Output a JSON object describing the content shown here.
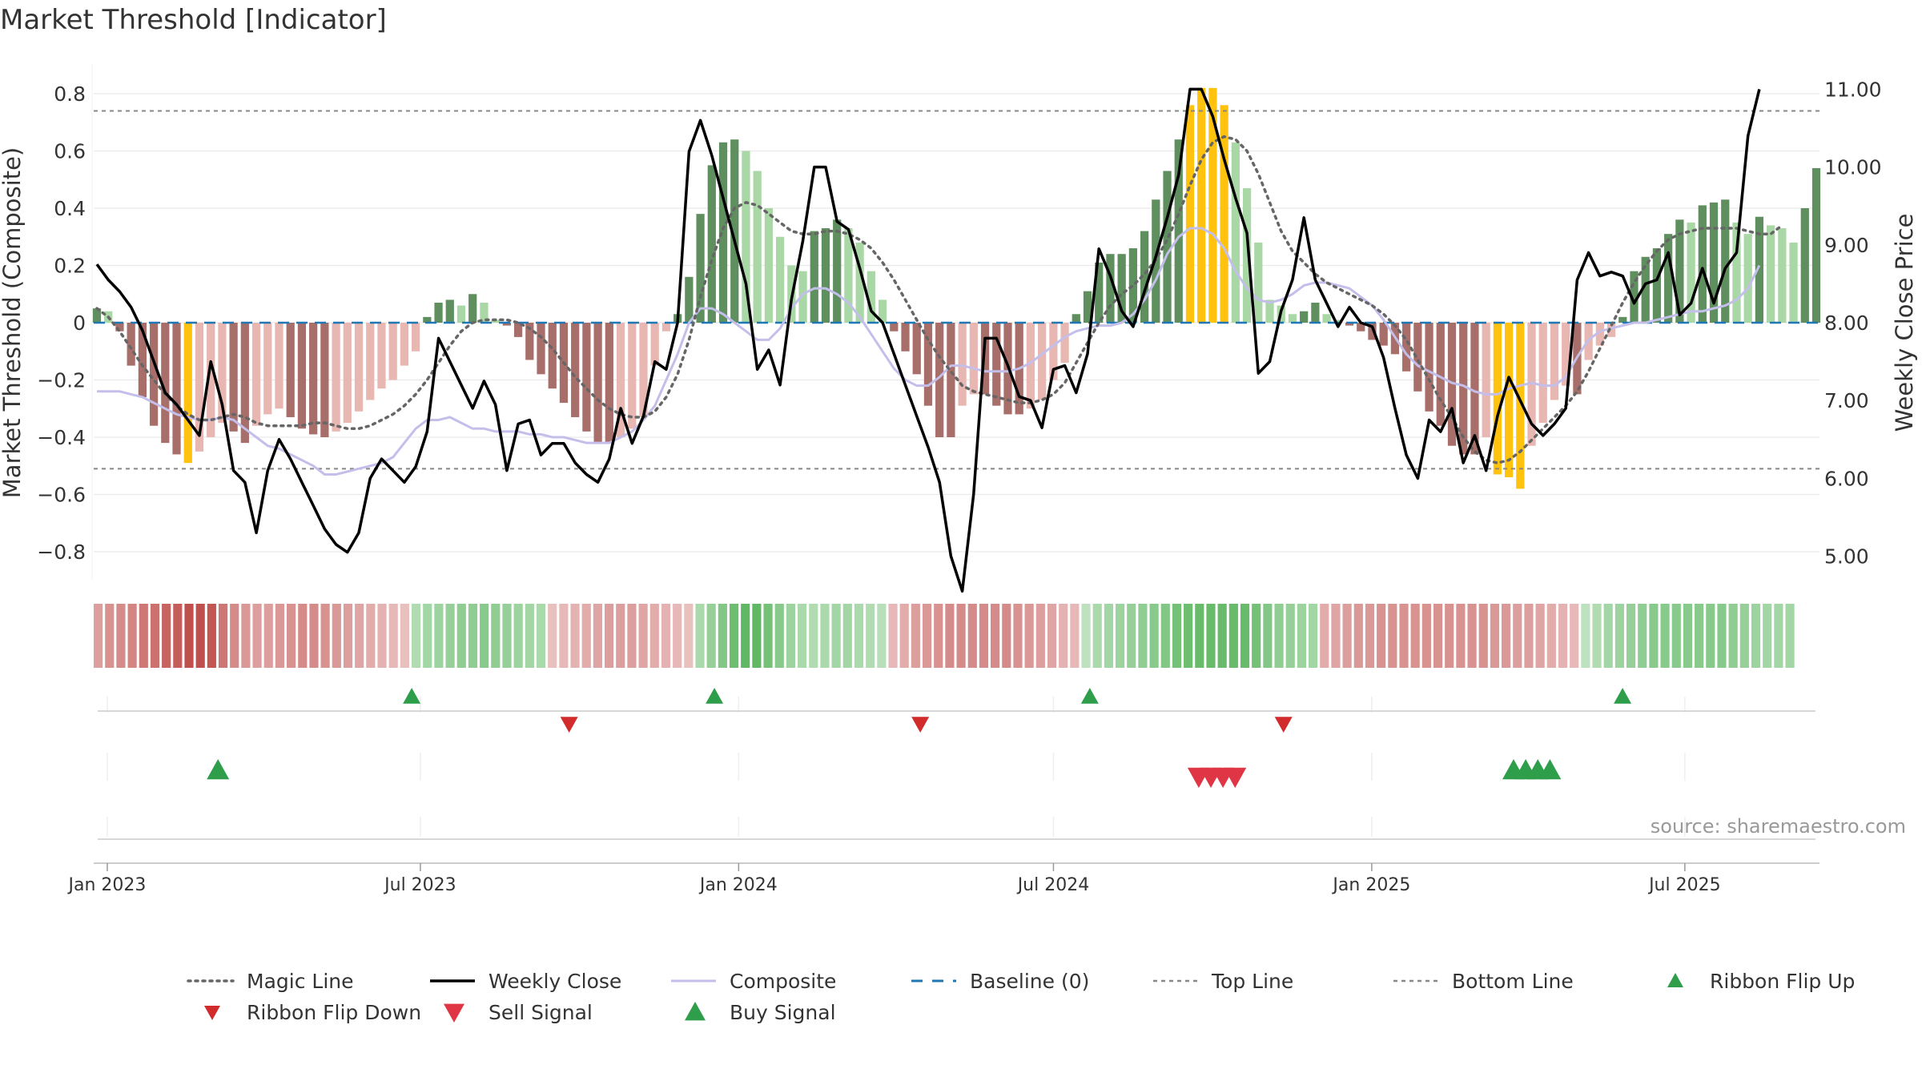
{
  "chart_data": {
    "type": "bar",
    "title": "Market Threshold [Indicator]",
    "ylabel": "Market Threshold (Composite)",
    "ylabel_right": "Weekly Close Price",
    "source": "source: sharemaestro.com",
    "ylim": [
      -0.9,
      0.9
    ],
    "ylim_right": [
      4.3,
      11.4
    ],
    "yticks": [
      0.8,
      0.6,
      0.4,
      0.2,
      0,
      -0.2,
      -0.4,
      -0.6,
      -0.8
    ],
    "ytick_labels": [
      "0.8",
      "0.6",
      "0.4",
      "0.2",
      "0",
      "−0.2",
      "−0.4",
      "−0.6",
      "−0.8"
    ],
    "yticks_right": [
      11,
      10,
      9,
      8,
      7,
      6,
      5
    ],
    "ytick_labels_right": [
      "11.00",
      "10.00",
      "9.00",
      "8.00",
      "7.00",
      "6.00",
      "5.00"
    ],
    "x_start": "2022-12-26",
    "x_end": "2025-09-15",
    "xticks": [
      {
        "date": "2023-01-01",
        "label": "Jan 2023"
      },
      {
        "date": "2023-07-01",
        "label": "Jul 2023"
      },
      {
        "date": "2024-01-01",
        "label": "Jan 2024"
      },
      {
        "date": "2024-07-01",
        "label": "Jul 2024"
      },
      {
        "date": "2025-01-01",
        "label": "Jan 2025"
      },
      {
        "date": "2025-07-01",
        "label": "Jul 2025"
      }
    ],
    "top_line": 0.74,
    "bottom_line": -0.51,
    "colors": {
      "pos_strong": "#5f8f5f",
      "pos_weak": "#a9d7a5",
      "neg_strong": "#a86e6a",
      "neg_weak": "#e8b7b2",
      "extreme": "#ffc20e",
      "weekly_close": "#000000",
      "magic_line": "#666666",
      "composite": "#c3bfea",
      "baseline": "#1f77b4",
      "ribbon_pos": "#4caf50",
      "ribbon_neg": "#c0504d",
      "buy": "#2e9e4a",
      "sell": "#e03545",
      "flip_up": "#2e9e4a",
      "flip_down": "#d12b2b"
    },
    "bars": [
      0.05,
      0.04,
      -0.03,
      -0.15,
      -0.26,
      -0.36,
      -0.42,
      -0.46,
      -0.49,
      -0.45,
      -0.4,
      -0.35,
      -0.38,
      -0.42,
      -0.36,
      -0.32,
      -0.3,
      -0.33,
      -0.37,
      -0.39,
      -0.4,
      -0.38,
      -0.35,
      -0.31,
      -0.27,
      -0.23,
      -0.2,
      -0.15,
      -0.1,
      0.02,
      0.07,
      0.08,
      0.06,
      0.1,
      0.07,
      0.01,
      -0.01,
      -0.05,
      -0.13,
      -0.18,
      -0.23,
      -0.28,
      -0.33,
      -0.38,
      -0.42,
      -0.42,
      -0.4,
      -0.37,
      -0.33,
      -0.15,
      -0.03,
      0.03,
      0.16,
      0.38,
      0.55,
      0.63,
      0.64,
      0.6,
      0.53,
      0.4,
      0.3,
      0.2,
      0.18,
      0.32,
      0.33,
      0.36,
      0.33,
      0.28,
      0.18,
      0.08,
      -0.03,
      -0.1,
      -0.18,
      -0.29,
      -0.4,
      -0.4,
      -0.29,
      -0.25,
      -0.25,
      -0.29,
      -0.32,
      -0.32,
      -0.3,
      -0.27,
      -0.2,
      -0.14,
      0.03,
      0.11,
      0.21,
      0.24,
      0.24,
      0.26,
      0.32,
      0.43,
      0.53,
      0.64,
      0.76,
      0.82,
      0.82,
      0.76,
      0.63,
      0.47,
      0.28,
      0.08,
      0.06,
      0.03,
      0.04,
      0.07,
      0.03,
      0.01,
      -0.01,
      -0.03,
      -0.06,
      -0.08,
      -0.11,
      -0.17,
      -0.24,
      -0.31,
      -0.36,
      -0.43,
      -0.46,
      -0.46,
      -0.4,
      -0.53,
      -0.54,
      -0.58,
      -0.43,
      -0.35,
      -0.27,
      -0.22,
      -0.25,
      -0.13,
      -0.08,
      -0.05,
      0.02,
      0.18,
      0.23,
      0.26,
      0.31,
      0.36,
      0.35,
      0.41,
      0.42,
      0.43,
      0.35,
      0.31,
      0.37,
      0.34,
      0.33,
      0.28,
      0.4,
      0.54
    ],
    "weekly_close": [
      8.75,
      8.55,
      8.4,
      8.2,
      7.9,
      7.5,
      7.1,
      6.95,
      6.75,
      6.55,
      7.5,
      6.95,
      6.1,
      5.95,
      5.3,
      6.1,
      6.5,
      6.25,
      5.95,
      5.65,
      5.35,
      5.15,
      5.05,
      5.3,
      6.0,
      6.25,
      6.1,
      5.95,
      6.15,
      6.6,
      7.8,
      7.5,
      7.2,
      6.9,
      7.25,
      6.95,
      6.1,
      6.7,
      6.75,
      6.3,
      6.45,
      6.45,
      6.2,
      6.05,
      5.95,
      6.25,
      6.9,
      6.45,
      6.8,
      7.5,
      7.4,
      8.0,
      10.2,
      10.6,
      10.15,
      9.6,
      9.05,
      8.5,
      7.4,
      7.65,
      7.2,
      8.3,
      9.05,
      10.0,
      10.0,
      9.3,
      9.2,
      8.7,
      8.15,
      8.0,
      7.6,
      7.2,
      6.8,
      6.4,
      5.95,
      5.0,
      4.55,
      5.8,
      7.8,
      7.8,
      7.45,
      7.05,
      7.0,
      6.65,
      7.4,
      7.45,
      7.1,
      7.6,
      8.95,
      8.6,
      8.15,
      7.95,
      8.4,
      8.85,
      9.35,
      9.9,
      11.0,
      11.0,
      10.65,
      10.1,
      9.6,
      9.15,
      7.35,
      7.5,
      8.15,
      8.55,
      9.35,
      8.55,
      8.25,
      7.95,
      8.2,
      8.0,
      7.95,
      7.55,
      6.9,
      6.3,
      6.0,
      6.75,
      6.6,
      6.9,
      6.2,
      6.55,
      6.1,
      6.8,
      7.3,
      7.0,
      6.7,
      6.55,
      6.7,
      6.9,
      8.55,
      8.9,
      8.6,
      8.65,
      8.6,
      8.25,
      8.5,
      8.55,
      8.9,
      8.1,
      8.25,
      8.7,
      8.25,
      8.7,
      8.9,
      10.4,
      11.0
    ],
    "magic_line": [
      0.05,
      0.02,
      -0.03,
      -0.09,
      -0.15,
      -0.2,
      -0.25,
      -0.29,
      -0.32,
      -0.34,
      -0.34,
      -0.33,
      -0.32,
      -0.33,
      -0.35,
      -0.36,
      -0.36,
      -0.36,
      -0.36,
      -0.35,
      -0.35,
      -0.36,
      -0.37,
      -0.37,
      -0.36,
      -0.34,
      -0.32,
      -0.29,
      -0.25,
      -0.2,
      -0.14,
      -0.08,
      -0.03,
      0.0,
      0.01,
      0.01,
      0.01,
      0.0,
      -0.02,
      -0.05,
      -0.09,
      -0.14,
      -0.19,
      -0.23,
      -0.27,
      -0.3,
      -0.32,
      -0.33,
      -0.33,
      -0.31,
      -0.26,
      -0.18,
      -0.06,
      0.09,
      0.22,
      0.33,
      0.4,
      0.42,
      0.41,
      0.38,
      0.35,
      0.32,
      0.31,
      0.31,
      0.32,
      0.32,
      0.31,
      0.29,
      0.26,
      0.21,
      0.15,
      0.08,
      0.01,
      -0.06,
      -0.12,
      -0.17,
      -0.22,
      -0.24,
      -0.25,
      -0.26,
      -0.27,
      -0.28,
      -0.28,
      -0.27,
      -0.25,
      -0.21,
      -0.14,
      -0.07,
      0.0,
      0.06,
      0.1,
      0.13,
      0.17,
      0.22,
      0.29,
      0.38,
      0.48,
      0.57,
      0.63,
      0.65,
      0.64,
      0.6,
      0.52,
      0.42,
      0.32,
      0.25,
      0.21,
      0.17,
      0.14,
      0.12,
      0.1,
      0.08,
      0.06,
      0.03,
      -0.01,
      -0.06,
      -0.13,
      -0.2,
      -0.27,
      -0.33,
      -0.4,
      -0.45,
      -0.48,
      -0.49,
      -0.48,
      -0.45,
      -0.41,
      -0.37,
      -0.33,
      -0.29,
      -0.24,
      -0.17,
      -0.09,
      -0.01,
      0.07,
      0.14,
      0.2,
      0.25,
      0.29,
      0.31,
      0.32,
      0.33,
      0.33,
      0.33,
      0.33,
      0.32,
      0.31,
      0.31,
      0.34
    ],
    "composite": [
      -0.24,
      -0.24,
      -0.24,
      -0.25,
      -0.26,
      -0.28,
      -0.3,
      -0.32,
      -0.33,
      -0.34,
      -0.34,
      -0.33,
      -0.34,
      -0.37,
      -0.4,
      -0.43,
      -0.44,
      -0.46,
      -0.48,
      -0.5,
      -0.53,
      -0.53,
      -0.52,
      -0.51,
      -0.5,
      -0.49,
      -0.47,
      -0.42,
      -0.37,
      -0.34,
      -0.34,
      -0.33,
      -0.35,
      -0.37,
      -0.37,
      -0.38,
      -0.38,
      -0.38,
      -0.39,
      -0.39,
      -0.4,
      -0.4,
      -0.41,
      -0.42,
      -0.42,
      -0.42,
      -0.4,
      -0.38,
      -0.34,
      -0.29,
      -0.2,
      -0.11,
      0.0,
      0.05,
      0.05,
      0.03,
      0.0,
      -0.03,
      -0.06,
      -0.06,
      -0.02,
      0.05,
      0.1,
      0.12,
      0.12,
      0.1,
      0.07,
      0.02,
      -0.04,
      -0.1,
      -0.16,
      -0.2,
      -0.22,
      -0.22,
      -0.19,
      -0.15,
      -0.15,
      -0.16,
      -0.17,
      -0.17,
      -0.17,
      -0.16,
      -0.14,
      -0.11,
      -0.08,
      -0.05,
      -0.03,
      -0.02,
      -0.01,
      -0.01,
      0.0,
      0.03,
      0.08,
      0.15,
      0.24,
      0.3,
      0.33,
      0.33,
      0.31,
      0.26,
      0.18,
      0.12,
      0.08,
      0.07,
      0.08,
      0.1,
      0.13,
      0.14,
      0.14,
      0.13,
      0.12,
      0.09,
      0.06,
      0.01,
      -0.05,
      -0.11,
      -0.15,
      -0.17,
      -0.19,
      -0.21,
      -0.22,
      -0.24,
      -0.25,
      -0.25,
      -0.23,
      -0.22,
      -0.21,
      -0.22,
      -0.22,
      -0.19,
      -0.12,
      -0.06,
      -0.03,
      -0.02,
      -0.01,
      0.0,
      0.0,
      0.01,
      0.02,
      0.03,
      0.04,
      0.04,
      0.05,
      0.06,
      0.08,
      0.12,
      0.2
    ],
    "ribbon": [
      -0.4,
      -0.5,
      -0.55,
      -0.6,
      -0.7,
      -0.75,
      -0.85,
      -0.9,
      -1.0,
      -1.0,
      -0.95,
      -0.7,
      -0.55,
      -0.45,
      -0.4,
      -0.4,
      -0.45,
      -0.5,
      -0.55,
      -0.55,
      -0.5,
      -0.45,
      -0.4,
      -0.35,
      -0.3,
      -0.25,
      -0.2,
      -0.15,
      0.25,
      0.35,
      0.4,
      0.45,
      0.5,
      0.5,
      0.55,
      0.5,
      0.45,
      0.4,
      0.35,
      0.3,
      -0.15,
      -0.2,
      -0.25,
      -0.3,
      -0.35,
      -0.4,
      -0.4,
      -0.4,
      -0.35,
      -0.3,
      -0.25,
      -0.2,
      -0.15,
      0.3,
      0.45,
      0.6,
      0.75,
      0.85,
      0.85,
      0.7,
      0.55,
      0.4,
      0.3,
      0.25,
      0.3,
      0.35,
      0.35,
      0.3,
      0.25,
      0.2,
      -0.2,
      -0.3,
      -0.4,
      -0.45,
      -0.5,
      -0.55,
      -0.55,
      -0.55,
      -0.55,
      -0.55,
      -0.55,
      -0.5,
      -0.45,
      -0.4,
      -0.35,
      -0.25,
      -0.2,
      0.15,
      0.3,
      0.35,
      0.4,
      0.45,
      0.5,
      0.55,
      0.6,
      0.7,
      0.75,
      0.8,
      0.8,
      0.8,
      0.8,
      0.8,
      0.7,
      0.6,
      0.5,
      0.45,
      0.4,
      0.35,
      -0.3,
      -0.35,
      -0.4,
      -0.45,
      -0.45,
      -0.5,
      -0.5,
      -0.5,
      -0.5,
      -0.5,
      -0.5,
      -0.5,
      -0.5,
      -0.5,
      -0.5,
      -0.45,
      -0.45,
      -0.4,
      -0.4,
      -0.35,
      -0.3,
      -0.25,
      -0.2,
      0.15,
      0.25,
      0.35,
      0.4,
      0.45,
      0.5,
      0.55,
      0.55,
      0.55,
      0.55,
      0.55,
      0.55,
      0.55,
      0.5,
      0.45,
      0.4,
      0.35,
      0.35,
      0.35
    ],
    "signals": {
      "ribbon_flip_up": [
        "2023-06-26",
        "2023-12-18",
        "2024-07-22",
        "2025-05-26"
      ],
      "ribbon_flip_down": [
        "2023-09-25",
        "2024-04-15",
        "2024-11-11"
      ],
      "buy_signal": [
        "2023-03-06",
        "2025-03-24",
        "2025-03-31",
        "2025-04-07",
        "2025-04-14"
      ],
      "sell_signal": [
        "2024-09-23",
        "2024-09-30",
        "2024-10-07",
        "2024-10-14"
      ]
    },
    "legend": [
      {
        "label": "Magic Line",
        "kind": "dotted",
        "color": "#666666"
      },
      {
        "label": "Weekly Close",
        "kind": "solid",
        "color": "#000000"
      },
      {
        "label": "Composite",
        "kind": "solid-light",
        "color": "#c3bfea"
      },
      {
        "label": "Baseline (0)",
        "kind": "dashed",
        "color": "#1f77b4"
      },
      {
        "label": "Top Line",
        "kind": "dotted-light",
        "color": "#888888"
      },
      {
        "label": "Bottom Line",
        "kind": "dotted-light",
        "color": "#888888"
      },
      {
        "label": "Ribbon Flip Up",
        "kind": "tri-up",
        "color": "#2e9e4a"
      },
      {
        "label": "Ribbon Flip Down",
        "kind": "tri-down",
        "color": "#d12b2b"
      },
      {
        "label": "Sell Signal",
        "kind": "tri-down-big",
        "color": "#e03545"
      },
      {
        "label": "Buy Signal",
        "kind": "tri-up-big",
        "color": "#2e9e4a"
      }
    ]
  }
}
